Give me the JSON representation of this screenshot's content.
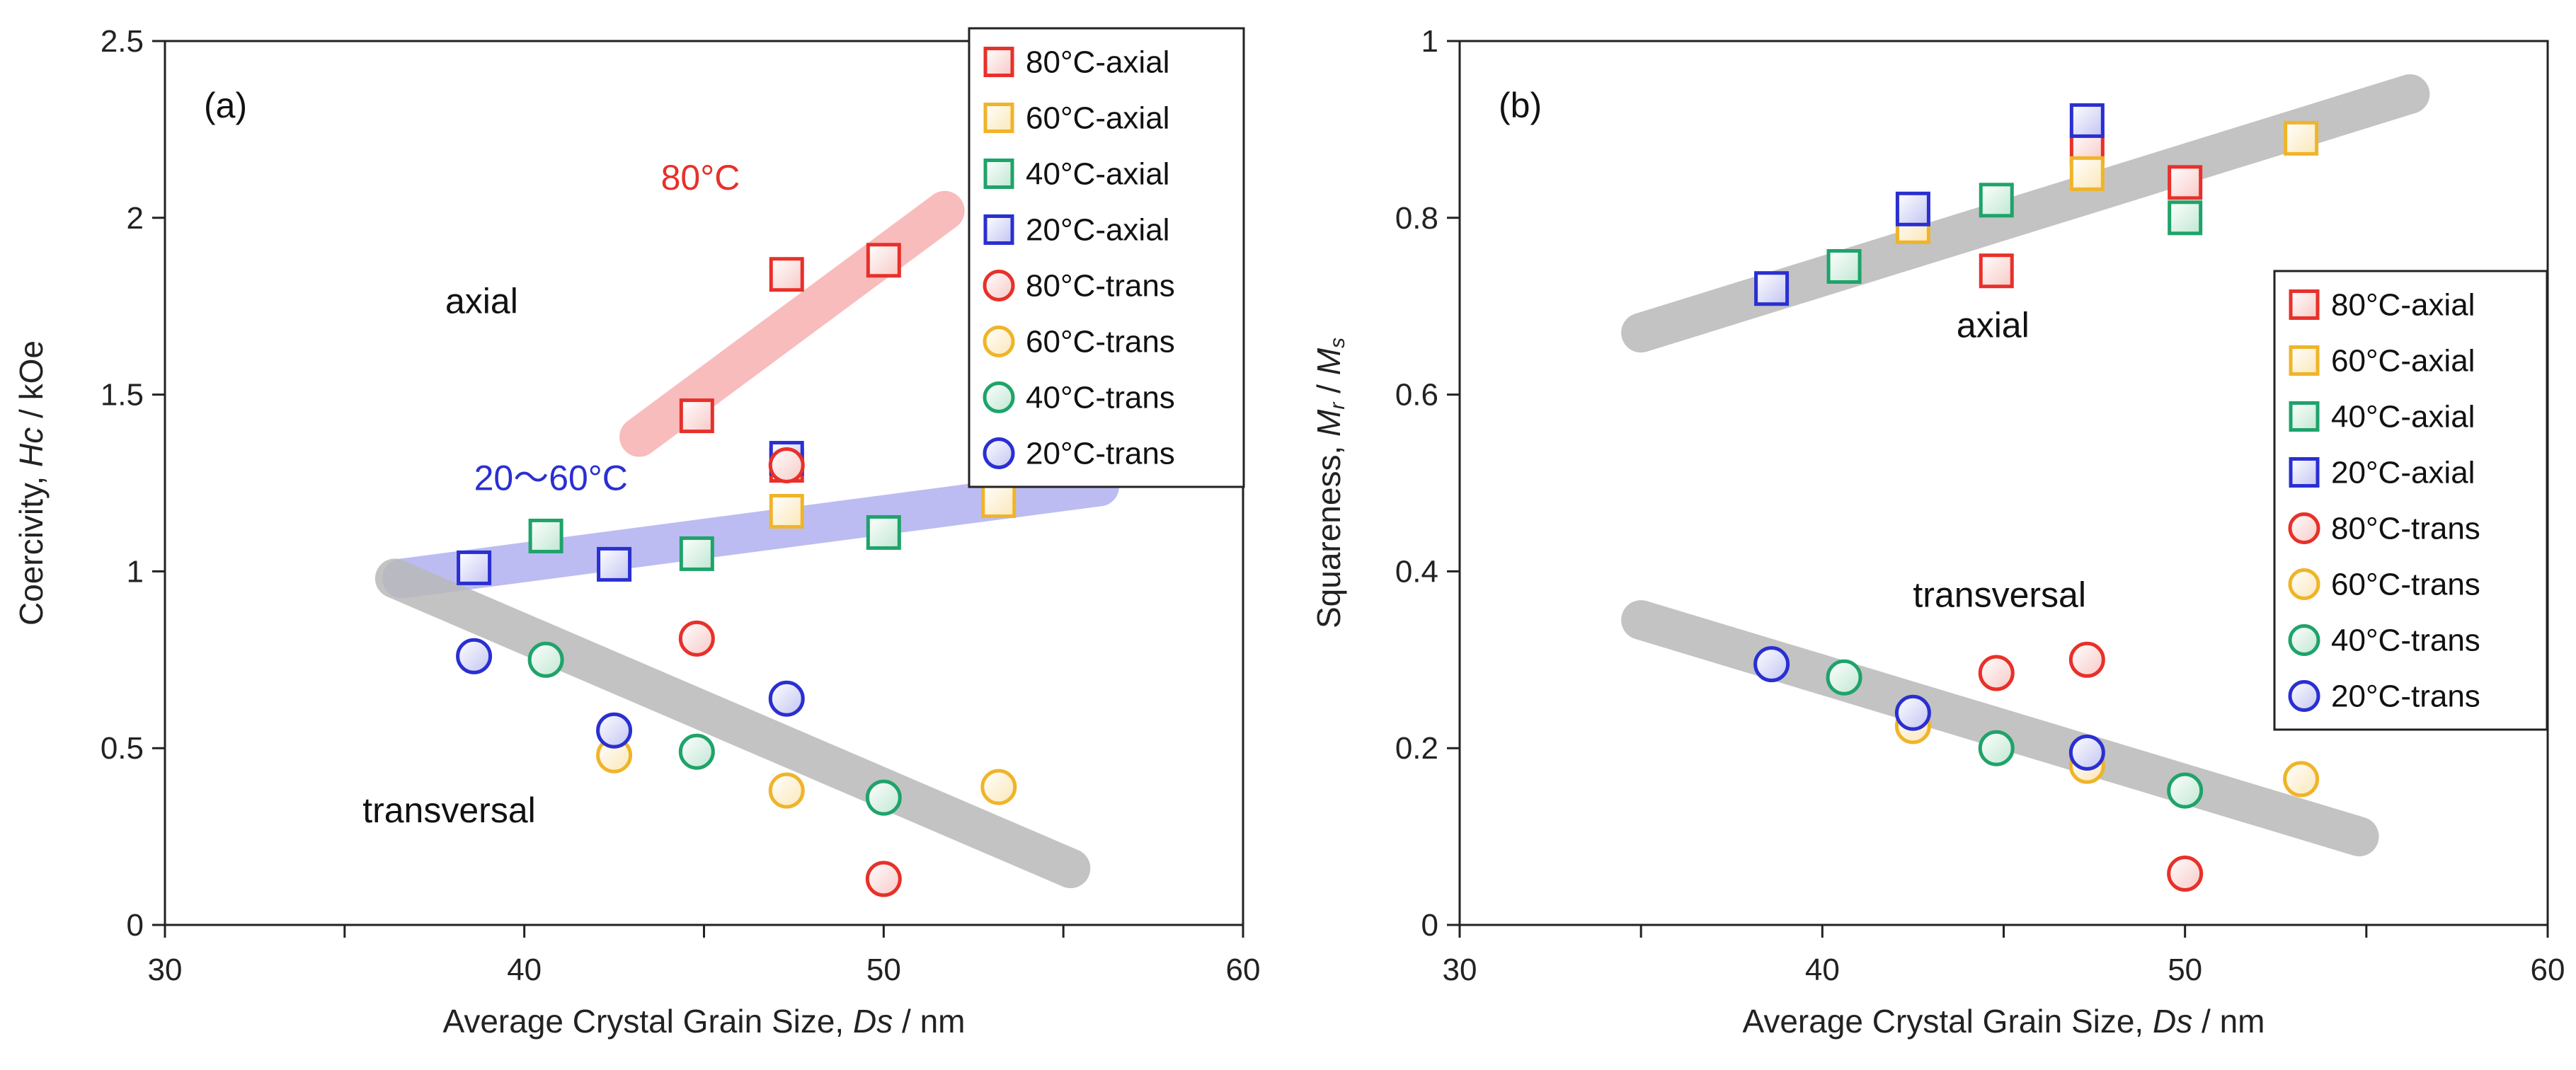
{
  "chart_data": [
    {
      "type": "scatter",
      "panel_label": "(a)",
      "xlabel": "Average Crystal Grain Size, Ds / nm",
      "ylabel": "Coercivity, Hc  / kOe",
      "xlim": [
        30,
        60
      ],
      "ylim": [
        0,
        2.5
      ],
      "x_ticks": [
        "30",
        "40",
        "50",
        "60"
      ],
      "y_ticks": [
        "0",
        "0.5",
        "1",
        "1.5",
        "2",
        "2.5"
      ],
      "legend": "top-right",
      "series": [
        {
          "name": "80°C-axial",
          "marker": "square",
          "color": "#e8302a",
          "points": [
            [
              44.8,
              1.44
            ],
            [
              47.3,
              1.84
            ],
            [
              50.0,
              1.88
            ],
            [
              47.3,
              1.3
            ]
          ]
        },
        {
          "name": "60°C-axial",
          "marker": "square",
          "color": "#f0b429",
          "points": [
            [
              47.3,
              1.17
            ],
            [
              53.2,
              1.2
            ]
          ]
        },
        {
          "name": "40°C-axial",
          "marker": "square",
          "color": "#1fa36a",
          "points": [
            [
              40.6,
              1.1
            ],
            [
              44.8,
              1.05
            ],
            [
              50.0,
              1.11
            ]
          ]
        },
        {
          "name": "20°C-axial",
          "marker": "square",
          "color": "#2a2fd1",
          "points": [
            [
              38.6,
              1.01
            ],
            [
              42.5,
              1.02
            ],
            [
              47.3,
              1.32
            ]
          ]
        },
        {
          "name": "80°C-trans",
          "marker": "circle",
          "color": "#e8302a",
          "points": [
            [
              44.8,
              0.81
            ],
            [
              47.3,
              1.3
            ],
            [
              50.0,
              0.13
            ]
          ]
        },
        {
          "name": "60°C-trans",
          "marker": "circle",
          "color": "#f0b429",
          "points": [
            [
              42.5,
              0.48
            ],
            [
              47.3,
              0.38
            ],
            [
              53.2,
              0.39
            ]
          ]
        },
        {
          "name": "40°C-trans",
          "marker": "circle",
          "color": "#1fa36a",
          "points": [
            [
              40.6,
              0.75
            ],
            [
              44.8,
              0.49
            ],
            [
              50.0,
              0.36
            ]
          ]
        },
        {
          "name": "20°C-trans",
          "marker": "circle",
          "color": "#2a2fd1",
          "points": [
            [
              38.6,
              0.76
            ],
            [
              42.5,
              0.55
            ],
            [
              47.3,
              0.64
            ]
          ]
        }
      ],
      "trend_bands": [
        {
          "color": "#f7b1b1",
          "from": [
            43.2,
            1.38
          ],
          "to": [
            51.7,
            2.02
          ]
        },
        {
          "color": "#b1b1f2",
          "from": [
            36.6,
            0.98
          ],
          "to": [
            56.0,
            1.24
          ]
        },
        {
          "color": "#b9b9b9",
          "from": [
            36.4,
            0.98
          ],
          "to": [
            55.2,
            0.16
          ]
        }
      ],
      "annotations": [
        {
          "text": "80°C",
          "color": "#e8302a",
          "at": [
            43.8,
            2.08
          ]
        },
        {
          "text": "axial",
          "color": "#111111",
          "at": [
            37.8,
            1.73
          ]
        },
        {
          "text": "20～60°C",
          "color": "#2a2fd1",
          "at": [
            38.6,
            1.23
          ]
        },
        {
          "text": "transversal",
          "color": "#111111",
          "at": [
            35.5,
            0.29
          ]
        }
      ]
    },
    {
      "type": "scatter",
      "panel_label": "(b)",
      "xlabel": "Average Crystal Grain Size, Ds / nm",
      "ylabel": "Squareness, Mr / Ms",
      "xlim": [
        30,
        60
      ],
      "ylim": [
        0,
        1
      ],
      "x_ticks": [
        "30",
        "40",
        "50",
        "60"
      ],
      "y_ticks": [
        "0",
        "0.2",
        "0.4",
        "0.6",
        "0.8",
        "1"
      ],
      "legend": "right",
      "series": [
        {
          "name": "80°C-axial",
          "marker": "square",
          "color": "#e8302a",
          "points": [
            [
              44.8,
              0.74
            ],
            [
              47.3,
              0.88
            ],
            [
              50.0,
              0.84
            ]
          ]
        },
        {
          "name": "60°C-axial",
          "marker": "square",
          "color": "#f0b429",
          "points": [
            [
              42.5,
              0.79
            ],
            [
              47.3,
              0.85
            ],
            [
              53.2,
              0.89
            ]
          ]
        },
        {
          "name": "40°C-axial",
          "marker": "square",
          "color": "#1fa36a",
          "points": [
            [
              40.6,
              0.745
            ],
            [
              44.8,
              0.82
            ],
            [
              50.0,
              0.8
            ]
          ]
        },
        {
          "name": "20°C-axial",
          "marker": "square",
          "color": "#2a2fd1",
          "points": [
            [
              38.6,
              0.72
            ],
            [
              42.5,
              0.81
            ],
            [
              47.3,
              0.91
            ]
          ]
        },
        {
          "name": "80°C-trans",
          "marker": "circle",
          "color": "#e8302a",
          "points": [
            [
              44.8,
              0.285
            ],
            [
              47.3,
              0.3
            ],
            [
              50.0,
              0.058
            ]
          ]
        },
        {
          "name": "60°C-trans",
          "marker": "circle",
          "color": "#f0b429",
          "points": [
            [
              42.5,
              0.225
            ],
            [
              47.3,
              0.18
            ],
            [
              53.2,
              0.165
            ]
          ]
        },
        {
          "name": "40°C-trans",
          "marker": "circle",
          "color": "#1fa36a",
          "points": [
            [
              40.6,
              0.28
            ],
            [
              44.8,
              0.2
            ],
            [
              50.0,
              0.152
            ]
          ]
        },
        {
          "name": "20°C-trans",
          "marker": "circle",
          "color": "#2a2fd1",
          "points": [
            [
              38.6,
              0.295
            ],
            [
              42.5,
              0.24
            ],
            [
              47.3,
              0.195
            ]
          ]
        }
      ],
      "trend_bands": [
        {
          "color": "#b9b9b9",
          "from": [
            35.0,
            0.67
          ],
          "to": [
            56.2,
            0.94
          ]
        },
        {
          "color": "#b9b9b9",
          "from": [
            35.0,
            0.345
          ],
          "to": [
            54.8,
            0.1
          ]
        }
      ],
      "annotations": [
        {
          "text": "axial",
          "color": "#111111",
          "at": [
            43.7,
            0.665
          ]
        },
        {
          "text": "transversal",
          "color": "#111111",
          "at": [
            42.5,
            0.36
          ]
        }
      ]
    }
  ]
}
